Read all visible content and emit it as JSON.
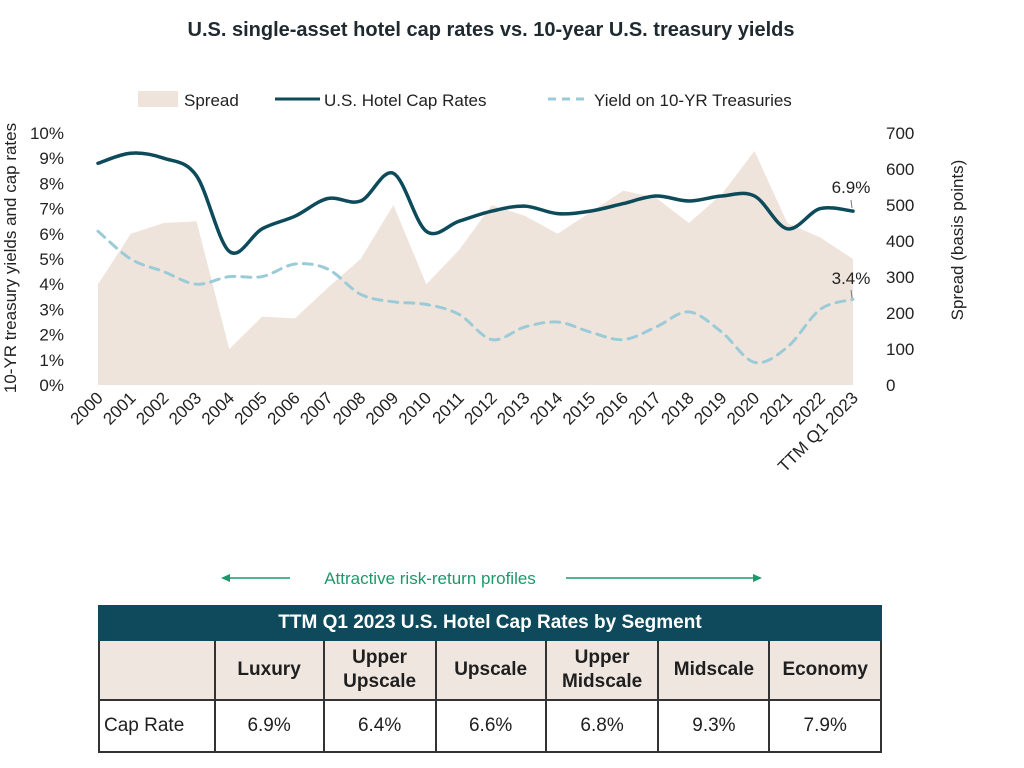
{
  "chart_data": {
    "type": "area+line",
    "title": "U.S. single-asset hotel cap rates vs. 10-year U.S. treasury yields",
    "ylabel_left": "10-YR treasury yields and cap rates",
    "ylabel_right": "Spread (basis points)",
    "y_left_ticks": [
      "0%",
      "1%",
      "2%",
      "3%",
      "4%",
      "5%",
      "6%",
      "7%",
      "8%",
      "9%",
      "10%"
    ],
    "y_right_ticks": [
      "0",
      "100",
      "200",
      "300",
      "400",
      "500",
      "600",
      "700"
    ],
    "ylim_left": [
      0,
      10
    ],
    "ylim_right": [
      0,
      700
    ],
    "categories": [
      "2000",
      "2001",
      "2002",
      "2003",
      "2004",
      "2005",
      "2006",
      "2007",
      "2008",
      "2009",
      "2010",
      "2011",
      "2012",
      "2013",
      "2014",
      "2015",
      "2016",
      "2017",
      "2018",
      "2019",
      "2020",
      "2021",
      "2022",
      "TTM Q1 2023"
    ],
    "legend_position": "top",
    "series": [
      {
        "name": "Spread",
        "kind": "area",
        "axis": "right",
        "color": "#efe4dc",
        "values": [
          280,
          420,
          450,
          455,
          100,
          190,
          185,
          270,
          350,
          500,
          280,
          375,
          500,
          470,
          420,
          480,
          540,
          520,
          450,
          530,
          650,
          450,
          410,
          350
        ]
      },
      {
        "name": "U.S. Hotel Cap Rates",
        "kind": "line",
        "axis": "left",
        "color": "#0d4a5a",
        "values": [
          8.8,
          9.2,
          9.0,
          8.3,
          5.3,
          6.2,
          6.7,
          7.4,
          7.3,
          8.4,
          6.1,
          6.5,
          6.9,
          7.1,
          6.8,
          6.9,
          7.2,
          7.5,
          7.3,
          7.5,
          7.5,
          6.2,
          7.0,
          6.9
        ]
      },
      {
        "name": "Yield on 10-YR Treasuries",
        "kind": "line",
        "dashed": true,
        "axis": "left",
        "color": "#9ccbd8",
        "values": [
          6.1,
          5.0,
          4.5,
          4.0,
          4.3,
          4.3,
          4.8,
          4.6,
          3.6,
          3.3,
          3.2,
          2.8,
          1.8,
          2.3,
          2.5,
          2.1,
          1.8,
          2.3,
          2.9,
          2.1,
          0.9,
          1.5,
          3.0,
          3.4
        ]
      }
    ],
    "annotations": [
      "6.9%",
      "3.4%"
    ]
  },
  "note": "Attractive risk-return profiles",
  "table": {
    "title": "TTM Q1 2023 U.S. Hotel Cap Rates by Segment",
    "segments": [
      "Luxury",
      "Upper Upscale",
      "Upscale",
      "Upper Midscale",
      "Midscale",
      "Economy"
    ],
    "row_label": "Cap Rate",
    "values": [
      "6.9%",
      "6.4%",
      "6.6%",
      "6.8%",
      "9.3%",
      "7.9%"
    ]
  }
}
